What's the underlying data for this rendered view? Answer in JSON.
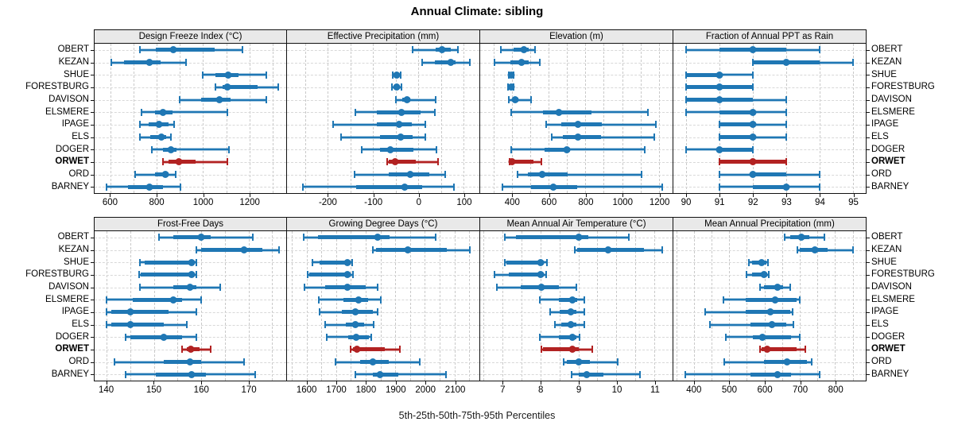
{
  "title": "Annual Climate: sibling",
  "caption": "5th-25th-50th-75th-95th Percentiles",
  "highlight_site": "ORWET",
  "colors": {
    "primary": "#1f77b4",
    "primary_light": "rgba(31,119,180,0.38)",
    "highlight": "#b22222",
    "highlight_light": "rgba(178,34,34,0.42)",
    "header_bg": "#e9e9e9",
    "panel_border": "#111111",
    "grid": "#c9c9c9"
  },
  "chart_data": {
    "type": "dot-interval-trellis",
    "percentiles": [
      5,
      25,
      50,
      75,
      95
    ],
    "legend_note": "thin line with caps = 5th-95th, thick segment = 25th-75th, dot = 50th",
    "categories": [
      "OBERT",
      "KEZAN",
      "SHUE",
      "FORESTBURG",
      "DAVISON",
      "ELSMERE",
      "IPAGE",
      "ELS",
      "DOGER",
      "ORWET",
      "ORD",
      "BARNEY"
    ],
    "panels": [
      {
        "title": "Design Freeze Index (°C)",
        "row": 0,
        "col": 0,
        "xlim": [
          530,
          1360
        ],
        "ticks": [
          600,
          800,
          1000,
          1200
        ],
        "grid_step": 100,
        "series": [
          [
            725,
            795,
            870,
            1050,
            1170
          ],
          [
            602,
            658,
            767,
            816,
            925
          ],
          [
            997,
            1055,
            1107,
            1154,
            1274
          ],
          [
            1055,
            1084,
            1105,
            1235,
            1325
          ],
          [
            900,
            991,
            1072,
            1119,
            1273
          ],
          [
            732,
            792,
            827,
            868,
            1105
          ],
          [
            725,
            763,
            810,
            851,
            874
          ],
          [
            725,
            770,
            819,
            839,
            862
          ],
          [
            778,
            827,
            859,
            886,
            1111
          ],
          [
            827,
            851,
            895,
            967,
            1105
          ],
          [
            705,
            792,
            837,
            851,
            880
          ],
          [
            583,
            676,
            769,
            827,
            901
          ]
        ]
      },
      {
        "title": "Effective Precipitation (mm)",
        "row": 0,
        "col": 1,
        "xlim": [
          -290,
          135
        ],
        "ticks": [
          -200,
          -100,
          0,
          100
        ],
        "grid_step": 50,
        "series": [
          [
            -12,
            38,
            53,
            72,
            88
          ],
          [
            8,
            37,
            71,
            83,
            114
          ],
          [
            -56,
            -51,
            -47,
            -43,
            -38
          ],
          [
            -58,
            -52,
            -48,
            -43,
            -37
          ],
          [
            -50,
            -36,
            -25,
            -17,
            39
          ],
          [
            -139,
            -91,
            -37,
            5,
            36
          ],
          [
            -189,
            -92,
            -42,
            -14,
            16
          ],
          [
            -170,
            -84,
            -38,
            -12,
            15
          ],
          [
            -125,
            -84,
            -62,
            -11,
            41
          ],
          [
            -69,
            -65,
            -51,
            -6,
            44
          ],
          [
            -141,
            -65,
            -18,
            25,
            60
          ],
          [
            -254,
            -138,
            -30,
            8,
            79
          ]
        ]
      },
      {
        "title": "Elevation (m)",
        "row": 0,
        "col": 2,
        "xlim": [
          226,
          1275
        ],
        "ticks": [
          400,
          600,
          800,
          1000,
          1200
        ],
        "grid_step": 100,
        "series": [
          [
            340,
            410,
            465,
            490,
            525
          ],
          [
            304,
            390,
            450,
            490,
            550
          ],
          [
            380,
            388,
            394,
            400,
            408
          ],
          [
            379,
            387,
            393,
            399,
            407
          ],
          [
            383,
            405,
            418,
            432,
            504
          ],
          [
            394,
            568,
            657,
            832,
            1139
          ],
          [
            587,
            668,
            758,
            890,
            1186
          ],
          [
            614,
            675,
            758,
            883,
            1175
          ],
          [
            394,
            575,
            697,
            718,
            1125
          ],
          [
            388,
            392,
            400,
            515,
            558
          ],
          [
            428,
            487,
            564,
            704,
            1107
          ],
          [
            347,
            504,
            623,
            754,
            1218
          ]
        ]
      },
      {
        "title": "Fraction of Annual PPT as Rain",
        "row": 0,
        "col": 3,
        "xlim": [
          89.62,
          95.39
        ],
        "ticks": [
          90,
          91,
          92,
          93,
          94,
          95
        ],
        "grid_step": 1,
        "series": [
          [
            90,
            91,
            92,
            93,
            94
          ],
          [
            92,
            92,
            93,
            94,
            95
          ],
          [
            90,
            90,
            91,
            91,
            92
          ],
          [
            90,
            90,
            91,
            92,
            92
          ],
          [
            90,
            90,
            91,
            92,
            93
          ],
          [
            90,
            91,
            92,
            92,
            93
          ],
          [
            91,
            91,
            92,
            92,
            93
          ],
          [
            91,
            91,
            92,
            92,
            93
          ],
          [
            90,
            91,
            91,
            92,
            92
          ],
          [
            91,
            91,
            92,
            93,
            93
          ],
          [
            91,
            92,
            92,
            93,
            94
          ],
          [
            91,
            92,
            93,
            93,
            94
          ]
        ]
      },
      {
        "title": "Frost-Free Days",
        "row": 1,
        "col": 0,
        "xlim": [
          137.4,
          178
        ],
        "ticks": [
          140,
          150,
          160,
          170
        ],
        "grid_step": 5,
        "series": [
          [
            151,
            154,
            160,
            162,
            171
          ],
          [
            159,
            160,
            169,
            173,
            176.5
          ],
          [
            147,
            148,
            158,
            158.5,
            159
          ],
          [
            146.8,
            147.2,
            158,
            158.5,
            159
          ],
          [
            147,
            154,
            157.6,
            159,
            164
          ],
          [
            140,
            145.5,
            154,
            156,
            160
          ],
          [
            140,
            141,
            145,
            153,
            159
          ],
          [
            140,
            141,
            145,
            152,
            157
          ],
          [
            144,
            145,
            152,
            156,
            159
          ],
          [
            156,
            157,
            157.8,
            159.7,
            162
          ],
          [
            141.6,
            152,
            157.6,
            160,
            169
          ],
          [
            144,
            150.3,
            157.9,
            161,
            171.4
          ]
        ]
      },
      {
        "title": "Growing Degree Days (°C)",
        "row": 1,
        "col": 1,
        "xlim": [
          1534,
          2184
        ],
        "ticks": [
          1600,
          1700,
          1800,
          1900,
          2000,
          2100
        ],
        "grid_step": 50,
        "series": [
          [
            1590,
            1640,
            1840,
            1880,
            2035
          ],
          [
            1825,
            1835,
            1942,
            2073,
            2153
          ],
          [
            1620,
            1645,
            1739,
            1750,
            1755
          ],
          [
            1604,
            1610,
            1739,
            1750,
            1756
          ],
          [
            1594,
            1662,
            1739,
            1800,
            1841
          ],
          [
            1642,
            1724,
            1775,
            1808,
            1852
          ],
          [
            1644,
            1719,
            1764,
            1825,
            1839
          ],
          [
            1662,
            1733,
            1765,
            1795,
            1828
          ],
          [
            1668,
            1741,
            1768,
            1810,
            1819
          ],
          [
            1749,
            1756,
            1770,
            1865,
            1916
          ],
          [
            1697,
            1780,
            1825,
            1879,
            1983
          ],
          [
            1765,
            1825,
            1848,
            1910,
            2070
          ]
        ]
      },
      {
        "title": "Mean Annual Air Temperature (°C)",
        "row": 1,
        "col": 2,
        "xlim": [
          6.41,
          11.48
        ],
        "ticks": [
          7,
          8,
          9,
          10,
          11
        ],
        "grid_step": 0.5,
        "series": [
          [
            7.06,
            7.35,
            9.0,
            9.25,
            10.33
          ],
          [
            8.9,
            8.97,
            9.79,
            10.72,
            11.2
          ],
          [
            7.06,
            7.1,
            8.0,
            8.08,
            8.16
          ],
          [
            6.79,
            7.17,
            8.0,
            8.08,
            8.14
          ],
          [
            6.85,
            7.48,
            8.03,
            8.48,
            8.95
          ],
          [
            7.99,
            8.48,
            8.84,
            8.97,
            9.16
          ],
          [
            8.26,
            8.5,
            8.79,
            8.95,
            9.16
          ],
          [
            8.37,
            8.55,
            8.8,
            8.95,
            9.16
          ],
          [
            7.99,
            8.48,
            8.84,
            8.95,
            9.03
          ],
          [
            8.03,
            8.07,
            8.84,
            9.0,
            9.37
          ],
          [
            8.6,
            8.7,
            9.01,
            9.3,
            10.03
          ],
          [
            8.81,
            9.0,
            9.21,
            9.66,
            10.62
          ]
        ]
      },
      {
        "title": "Mean Annual Precipitation (mm)",
        "row": 1,
        "col": 3,
        "xlim": [
          342,
          887
        ],
        "ticks": [
          400,
          500,
          600,
          700,
          800
        ],
        "grid_step": 50,
        "series": [
          [
            657,
            672,
            705,
            727,
            770
          ],
          [
            694,
            701,
            742,
            779,
            852
          ],
          [
            557,
            565,
            592,
            605,
            609
          ],
          [
            550,
            565,
            598,
            608,
            612
          ],
          [
            587,
            598,
            637,
            653,
            674
          ],
          [
            484,
            546,
            630,
            690,
            699
          ],
          [
            433,
            546,
            616,
            672,
            679
          ],
          [
            446,
            561,
            622,
            661,
            683
          ],
          [
            490,
            568,
            594,
            675,
            699
          ],
          [
            587,
            591,
            607,
            690,
            716
          ],
          [
            487,
            598,
            664,
            720,
            733
          ],
          [
            376,
            561,
            638,
            676,
            757
          ]
        ]
      }
    ]
  }
}
